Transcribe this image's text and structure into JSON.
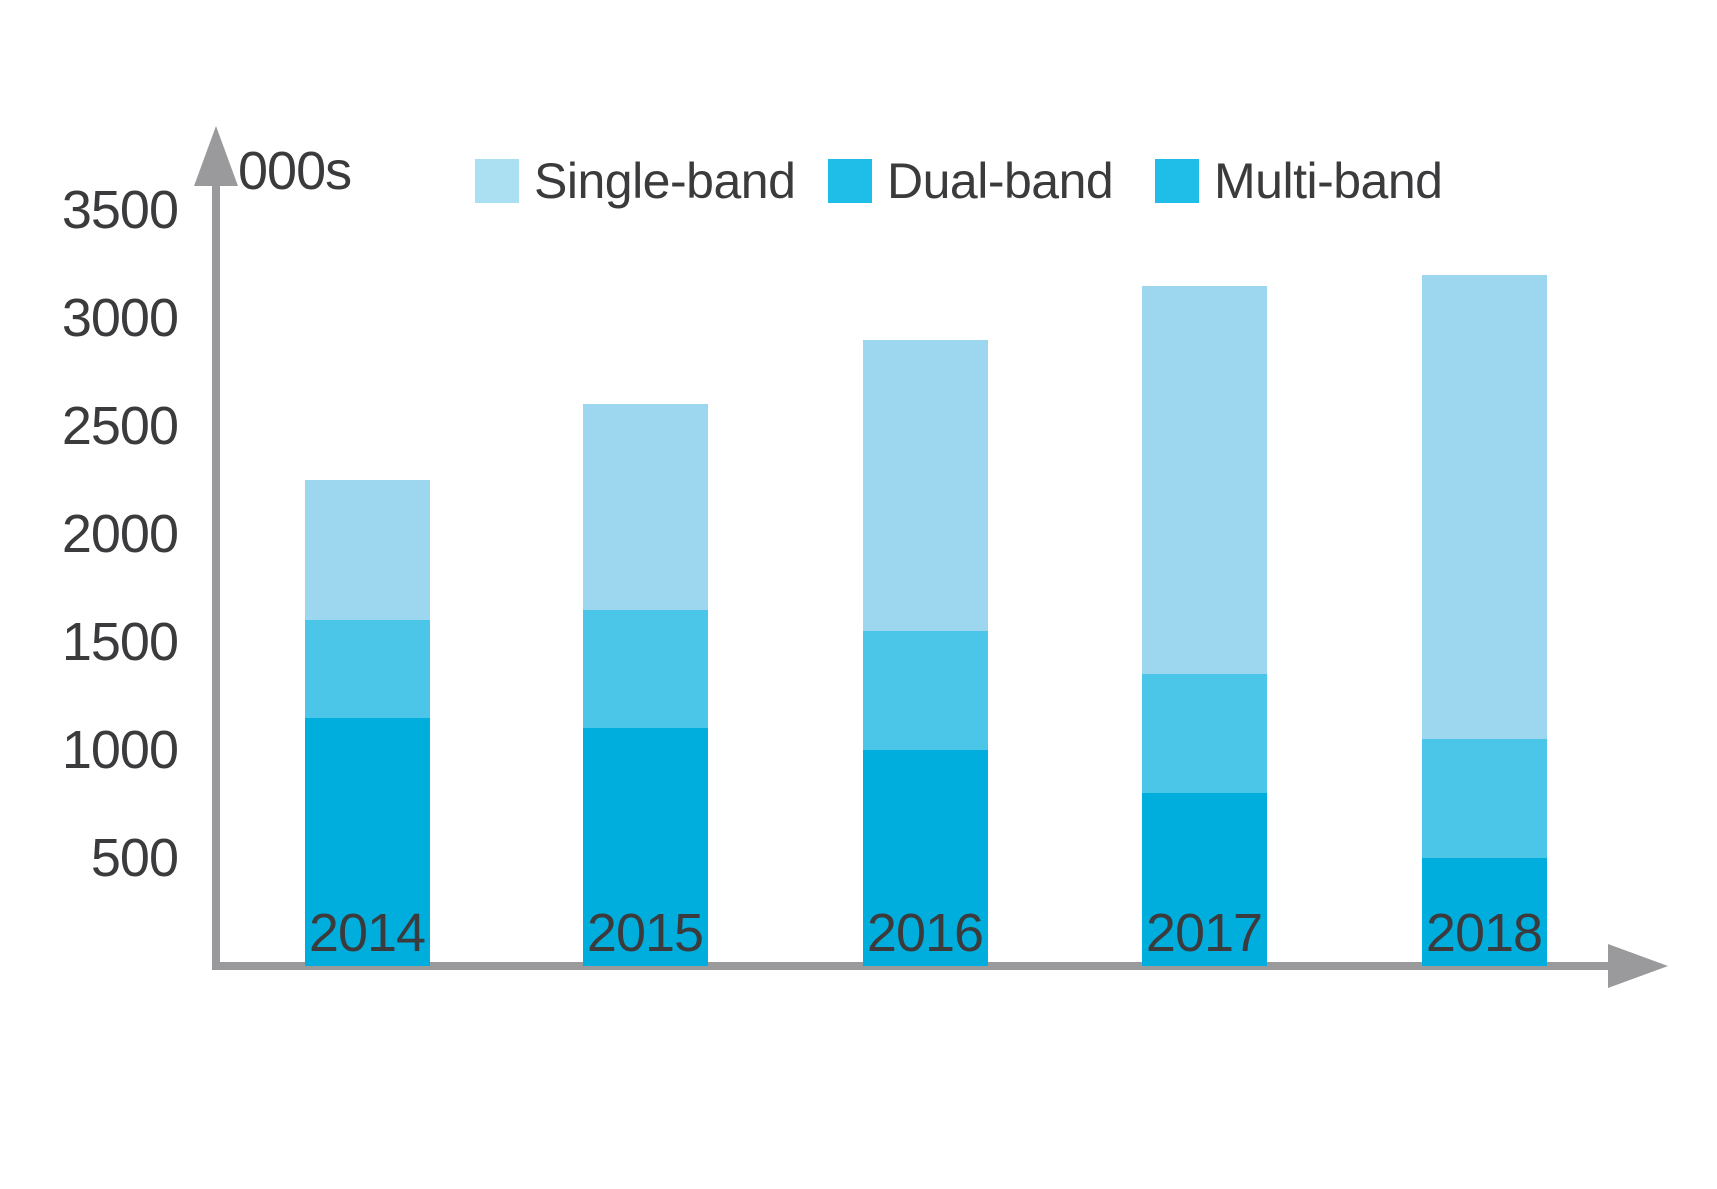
{
  "chart_data": {
    "type": "bar",
    "stacked": true,
    "title": "",
    "unit_label": "000s",
    "categories": [
      "2014",
      "2015",
      "2016",
      "2017",
      "2018"
    ],
    "series": [
      {
        "name": "Single-band",
        "color": "#9cd7ef",
        "legend_color": "#abdff2",
        "values": [
          650,
          950,
          1350,
          1800,
          2150
        ]
      },
      {
        "name": "Dual-band",
        "color": "#4cc6e8",
        "legend_color": "#1ebee8",
        "values": [
          450,
          550,
          550,
          550,
          550
        ]
      },
      {
        "name": "Multi-band",
        "color": "#00aedd",
        "legend_color": "#1ebee8",
        "values": [
          1150,
          1100,
          1000,
          800,
          500
        ]
      }
    ],
    "stack_order_bottom_to_top": [
      "Multi-band",
      "Dual-band",
      "Single-band"
    ],
    "totals": [
      2250,
      2600,
      2900,
      3150,
      3200
    ],
    "y_ticks": [
      500,
      1000,
      1500,
      2000,
      2500,
      3000,
      3500
    ],
    "ylim": [
      0,
      3700
    ],
    "xlabel": "",
    "ylabel": "000s",
    "grid": false,
    "legend_position": "top",
    "axis_color": "#9a9a9c",
    "text_color": "#3b3b3d"
  }
}
